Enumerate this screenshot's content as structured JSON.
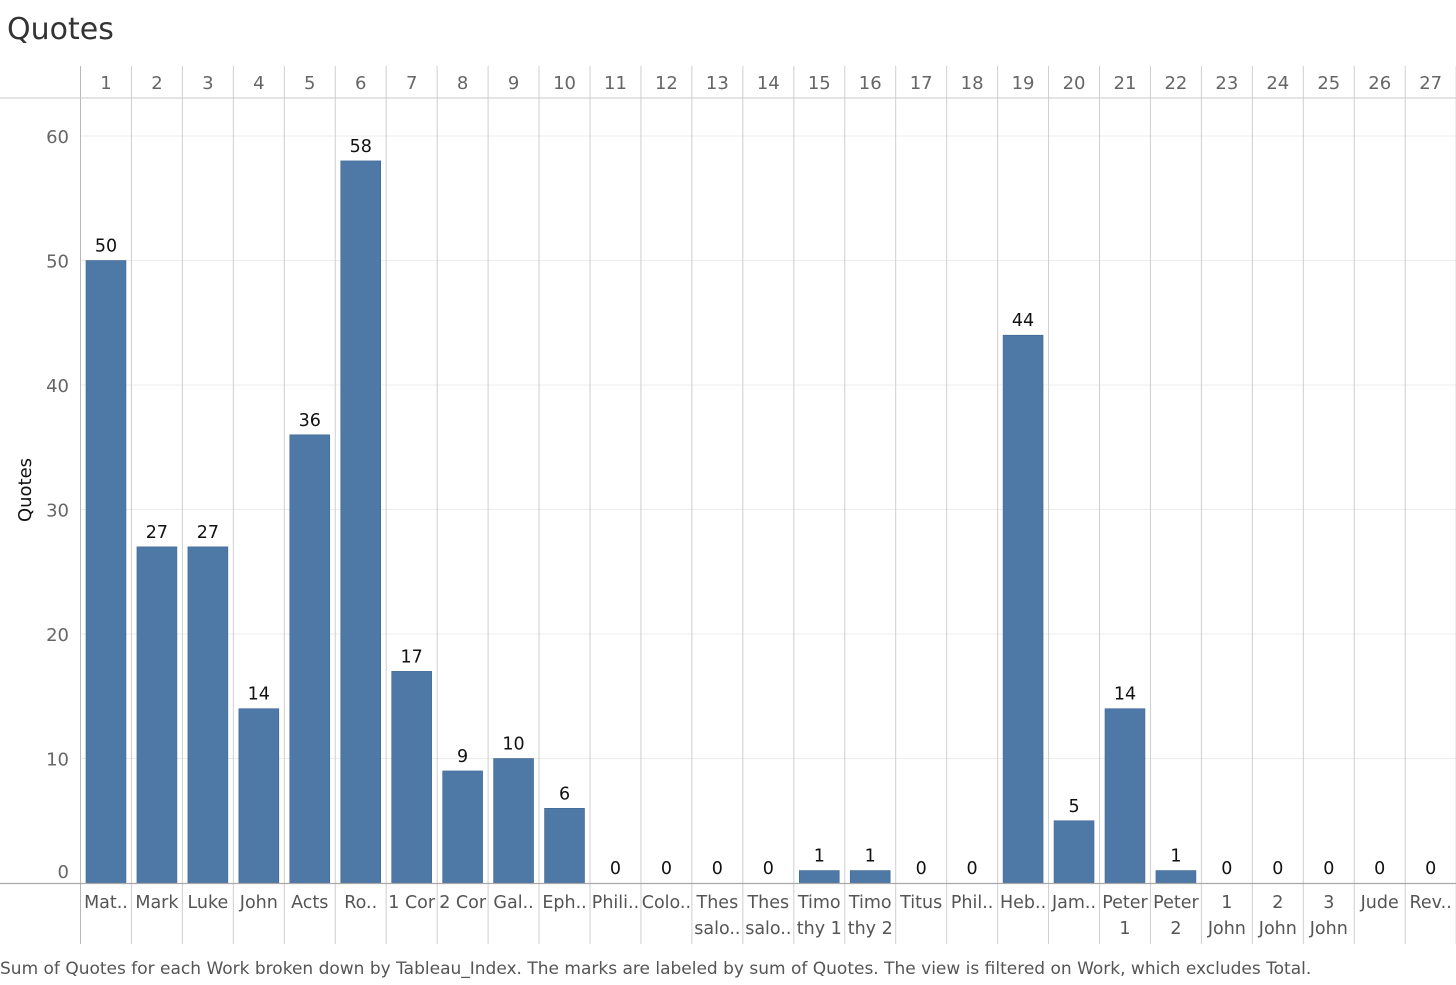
{
  "chart_data": {
    "type": "bar",
    "title": "Quotes",
    "ylabel": "Quotes",
    "xlabel": "",
    "ylim": [
      0,
      60
    ],
    "yticks": [
      0,
      10,
      20,
      30,
      40,
      50,
      60
    ],
    "grid": true,
    "bar_color": "#4e79a7",
    "indices": [
      "1",
      "2",
      "3",
      "4",
      "5",
      "6",
      "7",
      "8",
      "9",
      "10",
      "11",
      "12",
      "13",
      "14",
      "15",
      "16",
      "17",
      "18",
      "19",
      "20",
      "21",
      "22",
      "23",
      "24",
      "25",
      "26",
      "27"
    ],
    "categories": [
      [
        "Mat.."
      ],
      [
        "Mark"
      ],
      [
        "Luke"
      ],
      [
        "John"
      ],
      [
        "Acts"
      ],
      [
        "Ro.."
      ],
      [
        "1 Cor"
      ],
      [
        "2 Cor"
      ],
      [
        "Gal.."
      ],
      [
        "Eph.."
      ],
      [
        "Phili.."
      ],
      [
        "Colo.."
      ],
      [
        "Thes",
        "salo.."
      ],
      [
        "Thes",
        "salo.."
      ],
      [
        "Timo",
        "thy 1"
      ],
      [
        "Timo",
        "thy 2"
      ],
      [
        "Titus"
      ],
      [
        "Phil.."
      ],
      [
        "Heb.."
      ],
      [
        "Jam.."
      ],
      [
        "Peter",
        "1"
      ],
      [
        "Peter",
        "2"
      ],
      [
        "1",
        "John"
      ],
      [
        "2",
        "John"
      ],
      [
        "3",
        "John"
      ],
      [
        "Jude"
      ],
      [
        "Rev.."
      ]
    ],
    "values": [
      50,
      27,
      27,
      14,
      36,
      58,
      17,
      9,
      10,
      6,
      0,
      0,
      0,
      0,
      1,
      1,
      0,
      0,
      44,
      5,
      14,
      1,
      0,
      0,
      0,
      0,
      0
    ],
    "caption": "Sum of Quotes for each Work broken down by Tableau_Index.  The marks are labeled by sum of Quotes. The view is filtered on Work, which excludes Total."
  }
}
